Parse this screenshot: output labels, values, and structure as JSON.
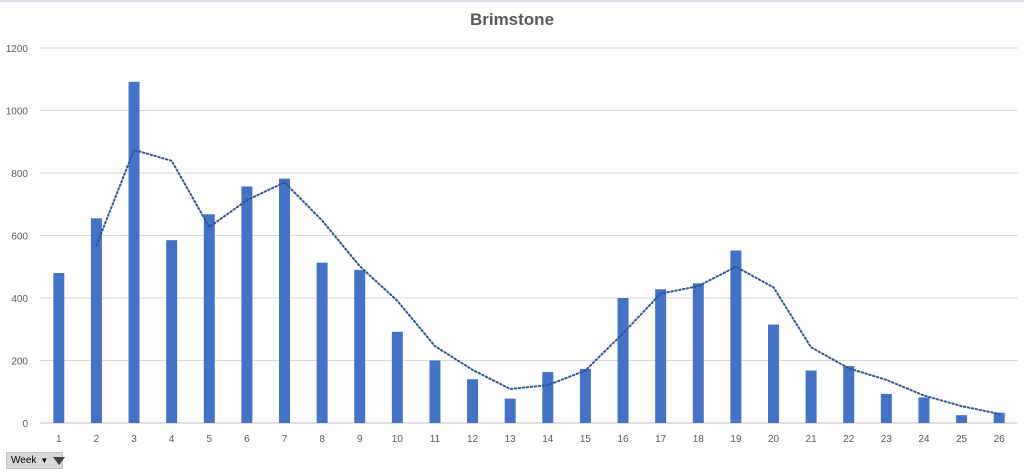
{
  "chart_data": {
    "type": "bar",
    "title": "Brimstone",
    "xlabel": "",
    "ylabel": "",
    "categories": [
      "1",
      "2",
      "3",
      "4",
      "5",
      "6",
      "7",
      "8",
      "9",
      "10",
      "11",
      "12",
      "13",
      "14",
      "15",
      "16",
      "17",
      "18",
      "19",
      "20",
      "21",
      "22",
      "23",
      "24",
      "25",
      "26"
    ],
    "series": [
      {
        "values": [
          480,
          655,
          1092,
          585,
          668,
          757,
          782,
          513,
          490,
          292,
          200,
          140,
          78,
          163,
          173,
          400,
          428,
          447,
          552,
          315,
          168,
          182,
          93,
          82,
          25,
          33
        ]
      }
    ],
    "trendline": {
      "style": "dotted",
      "type": "moving-average-2",
      "values": [
        null,
        568,
        874,
        839,
        627,
        713,
        770,
        648,
        502,
        391,
        246,
        170,
        109,
        121,
        168,
        287,
        414,
        438,
        500,
        434,
        242,
        175,
        138,
        88,
        54,
        29
      ]
    },
    "ylim": [
      0,
      1200
    ],
    "yticks": [
      0,
      200,
      400,
      600,
      800,
      1000,
      1200
    ],
    "grid": true,
    "legend": "none",
    "colors": {
      "bar": "#4472c4",
      "trend": "#2f5597",
      "grid": "#d9d9d9",
      "axis": "#bfbfbf",
      "text": "#595959"
    }
  },
  "field_button": {
    "label": "Week"
  }
}
